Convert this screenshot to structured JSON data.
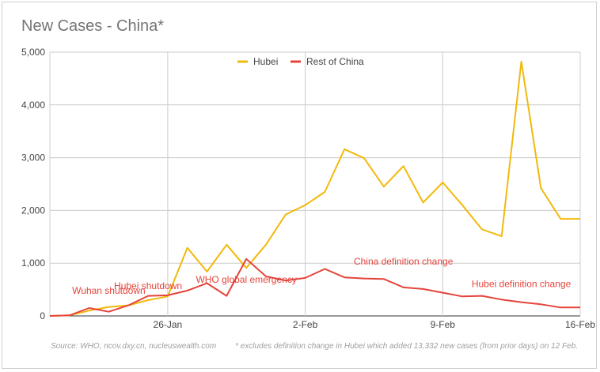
{
  "title": "New Cases - China*",
  "source": "Source: WHO, ncov.dxy.cn, nucleuswealth.com",
  "footnote": "* excludes definition change in Hubei which added 13,332 new cases (from prior days) on 12 Feb.",
  "colors": {
    "hubei": "#f2b90c",
    "rest": "#e5443b",
    "grid": "#cccccc",
    "axis": "#333333"
  },
  "chart_data": {
    "type": "line",
    "title": "New Cases - China*",
    "x": [
      "20-Jan",
      "21-Jan",
      "22-Jan",
      "23-Jan",
      "24-Jan",
      "25-Jan",
      "26-Jan",
      "27-Jan",
      "28-Jan",
      "29-Jan",
      "30-Jan",
      "31-Jan",
      "1-Feb",
      "2-Feb",
      "3-Feb",
      "4-Feb",
      "5-Feb",
      "6-Feb",
      "7-Feb",
      "8-Feb",
      "9-Feb",
      "10-Feb",
      "11-Feb",
      "12-Feb",
      "13-Feb",
      "14-Feb",
      "15-Feb",
      "16-Feb"
    ],
    "x_tick_labels": [
      {
        "index": 6,
        "label": "26-Jan"
      },
      {
        "index": 13,
        "label": "2-Feb"
      },
      {
        "index": 20,
        "label": "9-Feb"
      },
      {
        "index": 27,
        "label": "16-Feb"
      }
    ],
    "ylim": [
      0,
      5000
    ],
    "y_ticks": [
      0,
      1000,
      2000,
      3000,
      4000,
      5000
    ],
    "y_tick_labels": [
      "0",
      "1,000",
      "2,000",
      "3,000",
      "4,000",
      "5,000"
    ],
    "grid": true,
    "legend": "top",
    "series": [
      {
        "name": "Hubei",
        "color": "#f2b90c",
        "values": [
          0,
          10,
          100,
          170,
          200,
          300,
          370,
          1290,
          840,
          1350,
          910,
          1350,
          1920,
          2100,
          2350,
          3160,
          2990,
          2450,
          2840,
          2150,
          2530,
          2100,
          1640,
          1510,
          4820,
          2420,
          1840,
          1840
        ]
      },
      {
        "name": "Rest of China",
        "color": "#e5443b",
        "values": [
          0,
          10,
          150,
          80,
          200,
          380,
          390,
          480,
          620,
          380,
          1080,
          750,
          670,
          720,
          890,
          730,
          710,
          700,
          540,
          510,
          440,
          370,
          380,
          310,
          260,
          220,
          160,
          160
        ]
      }
    ],
    "annotations": [
      {
        "text": "Wuhan shutdown",
        "index": 3,
        "value": 480
      },
      {
        "text": "Hubei shutdown",
        "index": 5,
        "value": 570
      },
      {
        "text": "WHO global emergency",
        "index": 10,
        "value": 690
      },
      {
        "text": "China definition change",
        "index": 18,
        "value": 1030
      },
      {
        "text": "Hubei definition change",
        "index": 24,
        "value": 610
      }
    ]
  }
}
